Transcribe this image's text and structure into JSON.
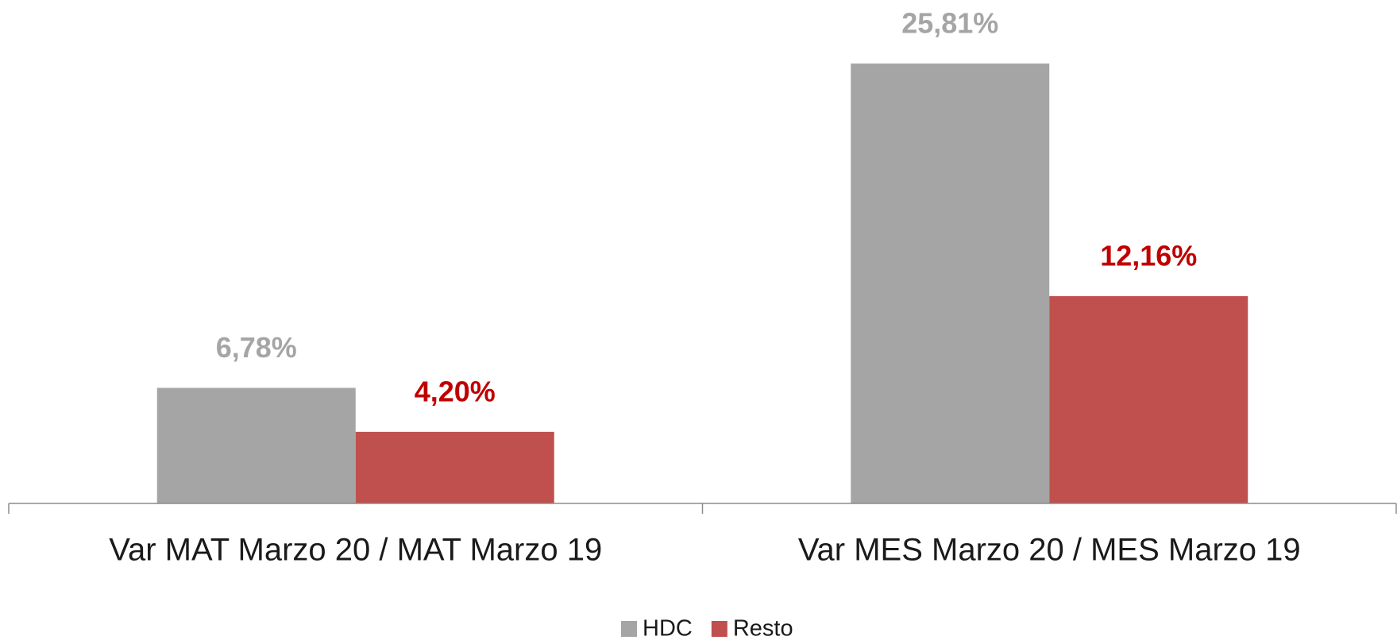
{
  "chart_data": {
    "type": "bar",
    "categories": [
      "Var MAT Marzo 20 / MAT Marzo 19",
      "Var MES Marzo 20 / MES Marzo 19"
    ],
    "series": [
      {
        "name": "HDC",
        "color": "#a5a5a5",
        "label_color": "#a5a5a5",
        "values": [
          6.78,
          25.81
        ],
        "value_labels": [
          "6,78%",
          "25,81%"
        ]
      },
      {
        "name": "Resto",
        "color": "#c0504d",
        "label_color": "#c00000",
        "values": [
          4.2,
          12.16
        ],
        "value_labels": [
          "4,20%",
          "12,16%"
        ]
      }
    ],
    "ylim": [
      0,
      28
    ],
    "legend": "bottom"
  }
}
